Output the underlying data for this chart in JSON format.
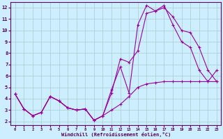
{
  "xlabel": "Windchill (Refroidissement éolien,°C)",
  "background_color": "#cceeff",
  "grid_color": "#aacccc",
  "line_color": "#990099",
  "xlim": [
    -0.5,
    23.5
  ],
  "ylim": [
    1.7,
    12.5
  ],
  "xticks": [
    0,
    1,
    2,
    3,
    4,
    5,
    6,
    7,
    8,
    9,
    10,
    11,
    12,
    13,
    14,
    15,
    16,
    17,
    18,
    19,
    20,
    21,
    22,
    23
  ],
  "yticks": [
    2,
    3,
    4,
    5,
    6,
    7,
    8,
    9,
    10,
    11,
    12
  ],
  "line1_x": [
    0,
    1,
    2,
    3,
    4,
    5,
    6,
    7,
    8,
    9,
    10,
    11,
    12,
    13,
    14,
    15,
    16,
    17,
    18,
    19,
    20,
    21,
    22,
    23
  ],
  "line1_y": [
    4.4,
    3.1,
    2.5,
    2.8,
    4.2,
    3.8,
    3.2,
    3.0,
    3.1,
    2.1,
    2.5,
    3.0,
    3.5,
    4.2,
    5.0,
    5.3,
    5.4,
    5.5,
    5.5,
    5.5,
    5.5,
    5.5,
    5.5,
    5.5
  ],
  "line2_x": [
    0,
    1,
    2,
    3,
    4,
    5,
    6,
    7,
    8,
    9,
    10,
    11,
    12,
    13,
    14,
    15,
    16,
    17,
    18,
    19,
    20,
    21,
    22,
    23
  ],
  "line2_y": [
    4.4,
    3.1,
    2.5,
    2.8,
    4.2,
    3.8,
    3.2,
    3.0,
    3.1,
    2.1,
    2.5,
    4.5,
    7.5,
    7.2,
    8.2,
    11.5,
    11.7,
    12.2,
    10.5,
    9.0,
    8.5,
    6.5,
    5.5,
    6.5
  ],
  "line3_x": [
    0,
    1,
    2,
    3,
    4,
    5,
    6,
    7,
    8,
    9,
    10,
    11,
    12,
    13,
    14,
    15,
    16,
    17,
    18,
    19,
    20,
    21,
    22,
    23
  ],
  "line3_y": [
    4.4,
    3.1,
    2.5,
    2.8,
    4.2,
    3.8,
    3.2,
    3.0,
    3.1,
    2.1,
    2.5,
    4.8,
    6.8,
    4.5,
    10.5,
    12.2,
    11.7,
    12.0,
    11.2,
    10.0,
    9.8,
    8.5,
    6.5,
    5.5
  ]
}
